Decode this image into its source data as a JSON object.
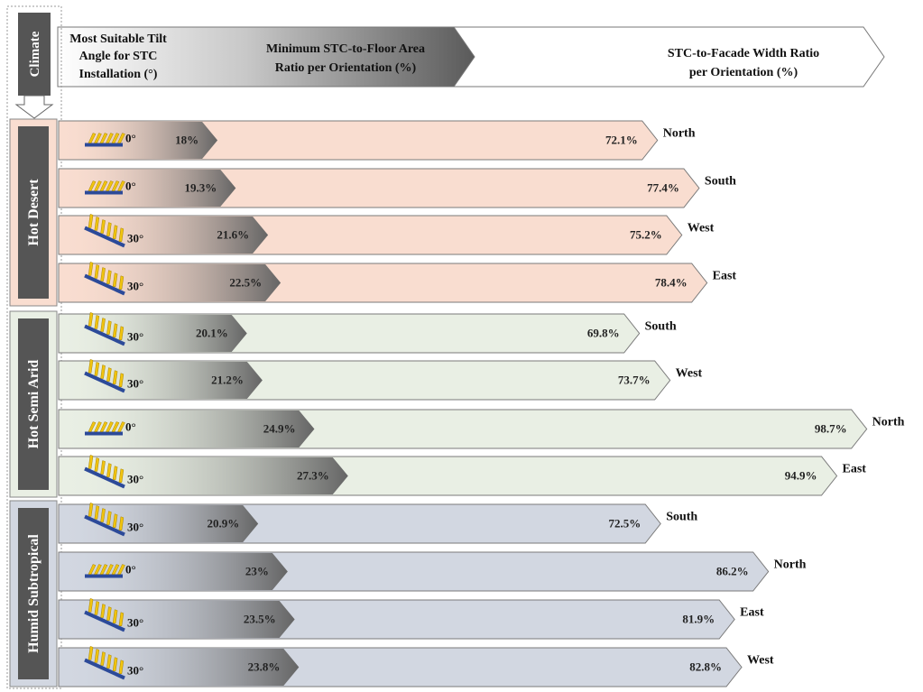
{
  "header": {
    "climate_label": "Climate",
    "tilt_label": [
      "Most Suitable Tilt",
      "Angle for STC",
      "Installation (°)"
    ],
    "floor_label": [
      "Minimum STC-to-Floor Area",
      "Ratio per Orientation (%)"
    ],
    "facade_label": [
      "STC-to-Facade Width Ratio",
      "per Orientation (%)"
    ]
  },
  "colors": {
    "hot_desert_bar": "#f9ddd0",
    "hot_semi_arid_bar": "#e9efe4",
    "humid_subtropical_bar": "#d2d7e1",
    "climate_tab": "#555555",
    "floor_ratio_gradient_end": "#656565",
    "collector_yellow": "#f1c40f",
    "collector_blue": "#2c4a99"
  },
  "chart_data": {
    "type": "bar",
    "x_unit": "%",
    "groups": [
      {
        "climate": "Hot Desert",
        "rows": [
          {
            "tilt": "0°",
            "tilt_value": 0,
            "floor_ratio": 18,
            "floor_label": "18%",
            "facade_ratio": 72.1,
            "facade_label": "72.1%",
            "orientation": "North"
          },
          {
            "tilt": "0°",
            "tilt_value": 0,
            "floor_ratio": 19.3,
            "floor_label": "19.3%",
            "facade_ratio": 77.4,
            "facade_label": "77.4%",
            "orientation": "South"
          },
          {
            "tilt": "30°",
            "tilt_value": 30,
            "floor_ratio": 21.6,
            "floor_label": "21.6%",
            "facade_ratio": 75.2,
            "facade_label": "75.2%",
            "orientation": "West"
          },
          {
            "tilt": "30°",
            "tilt_value": 30,
            "floor_ratio": 22.5,
            "floor_label": "22.5%",
            "facade_ratio": 78.4,
            "facade_label": "78.4%",
            "orientation": "East"
          }
        ]
      },
      {
        "climate": "Hot Semi Arid",
        "rows": [
          {
            "tilt": "30°",
            "tilt_value": 30,
            "floor_ratio": 20.1,
            "floor_label": "20.1%",
            "facade_ratio": 69.8,
            "facade_label": "69.8%",
            "orientation": "South"
          },
          {
            "tilt": "30°",
            "tilt_value": 30,
            "floor_ratio": 21.2,
            "floor_label": "21.2%",
            "facade_ratio": 73.7,
            "facade_label": "73.7%",
            "orientation": "West"
          },
          {
            "tilt": "0°",
            "tilt_value": 0,
            "floor_ratio": 24.9,
            "floor_label": "24.9%",
            "facade_ratio": 98.7,
            "facade_label": "98.7%",
            "orientation": "North"
          },
          {
            "tilt": "30°",
            "tilt_value": 30,
            "floor_ratio": 27.3,
            "floor_label": "27.3%",
            "facade_ratio": 94.9,
            "facade_label": "94.9%",
            "orientation": "East"
          }
        ]
      },
      {
        "climate": "Humid Subtropical",
        "rows": [
          {
            "tilt": "30°",
            "tilt_value": 30,
            "floor_ratio": 20.9,
            "floor_label": "20.9%",
            "facade_ratio": 72.5,
            "facade_label": "72.5%",
            "orientation": "South"
          },
          {
            "tilt": "0°",
            "tilt_value": 0,
            "floor_ratio": 23,
            "floor_label": "23%",
            "facade_ratio": 86.2,
            "facade_label": "86.2%",
            "orientation": "North"
          },
          {
            "tilt": "30°",
            "tilt_value": 30,
            "floor_ratio": 23.5,
            "floor_label": "23.5%",
            "facade_ratio": 81.9,
            "facade_label": "81.9%",
            "orientation": "East"
          },
          {
            "tilt": "30°",
            "tilt_value": 30,
            "floor_ratio": 23.8,
            "floor_label": "23.8%",
            "facade_ratio": 82.8,
            "facade_label": "82.8%",
            "orientation": "West"
          }
        ]
      }
    ]
  }
}
